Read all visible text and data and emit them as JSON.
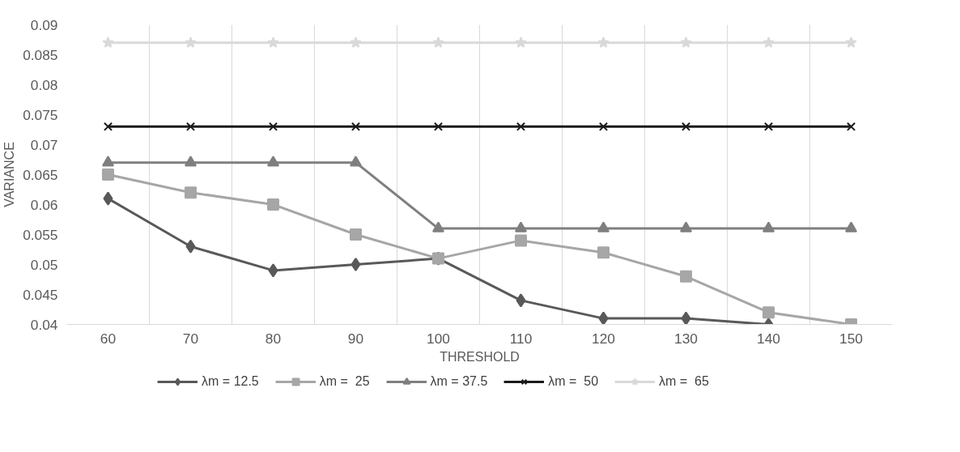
{
  "chart_data": {
    "type": "line",
    "xlabel": "THRESHOLD",
    "ylabel": "VARIANCE",
    "categories": [
      "60",
      "70",
      "80",
      "90",
      "100",
      "110",
      "120",
      "130",
      "140",
      "150"
    ],
    "ylim": [
      0.04,
      0.09
    ],
    "yticks": [
      0.04,
      0.045,
      0.05,
      0.055,
      0.06,
      0.065,
      0.07,
      0.075,
      0.08,
      0.085,
      0.09
    ],
    "grid": "x",
    "legend": "bottom",
    "series": [
      {
        "name": "λm = 12.5",
        "color": "#595959",
        "marker": "diamond",
        "values": [
          0.061,
          0.053,
          0.049,
          0.05,
          0.051,
          0.044,
          0.041,
          0.041,
          0.04,
          null
        ]
      },
      {
        "name": "λm =  25",
        "color": "#a6a6a6",
        "marker": "square",
        "values": [
          0.065,
          0.062,
          0.06,
          0.055,
          0.051,
          0.054,
          0.052,
          0.048,
          0.042,
          0.04
        ]
      },
      {
        "name": "λm = 37.5",
        "color": "#7f7f7f",
        "marker": "triangle",
        "values": [
          0.067,
          0.067,
          0.067,
          0.067,
          0.056,
          0.056,
          0.056,
          0.056,
          0.056,
          0.056
        ]
      },
      {
        "name": "λm =  50",
        "color": "#1a1a1a",
        "marker": "cross",
        "values": [
          0.073,
          0.073,
          0.073,
          0.073,
          0.073,
          0.073,
          0.073,
          0.073,
          0.073,
          0.073
        ]
      },
      {
        "name": "λm =  65",
        "color": "#d9d9d9",
        "marker": "star",
        "values": [
          0.087,
          0.087,
          0.087,
          0.087,
          0.087,
          0.087,
          0.087,
          0.087,
          0.087,
          0.087
        ]
      }
    ]
  }
}
